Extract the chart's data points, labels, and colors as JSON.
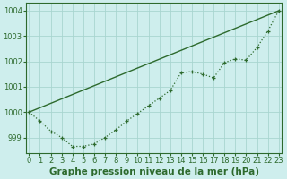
{
  "line1_x": [
    0,
    23
  ],
  "line1_y": [
    1000.0,
    1004.0
  ],
  "line2_x": [
    0,
    1,
    2,
    3,
    4,
    5,
    6,
    7,
    8,
    9,
    10,
    11,
    12,
    13,
    14,
    15,
    16,
    17,
    18,
    19,
    20,
    21,
    22,
    23
  ],
  "line2_y": [
    1000.0,
    999.65,
    999.25,
    999.0,
    998.65,
    998.65,
    998.75,
    999.0,
    999.3,
    999.65,
    999.95,
    1000.25,
    1000.55,
    1000.85,
    1001.55,
    1001.6,
    1001.5,
    1001.35,
    1001.95,
    1002.1,
    1002.05,
    1002.55,
    1003.2,
    1004.0
  ],
  "line_color": "#2d6a2d",
  "bg_color": "#ceeeed",
  "grid_color": "#a8d5d0",
  "xlabel": "Graphe pression niveau de la mer (hPa)",
  "ylim": [
    998.4,
    1004.3
  ],
  "xlim": [
    -0.3,
    23.3
  ],
  "yticks": [
    999,
    1000,
    1001,
    1002,
    1003,
    1004
  ],
  "xticks": [
    0,
    1,
    2,
    3,
    4,
    5,
    6,
    7,
    8,
    9,
    10,
    11,
    12,
    13,
    14,
    15,
    16,
    17,
    18,
    19,
    20,
    21,
    22,
    23
  ],
  "tick_fontsize": 6.0,
  "xlabel_fontsize": 7.5
}
